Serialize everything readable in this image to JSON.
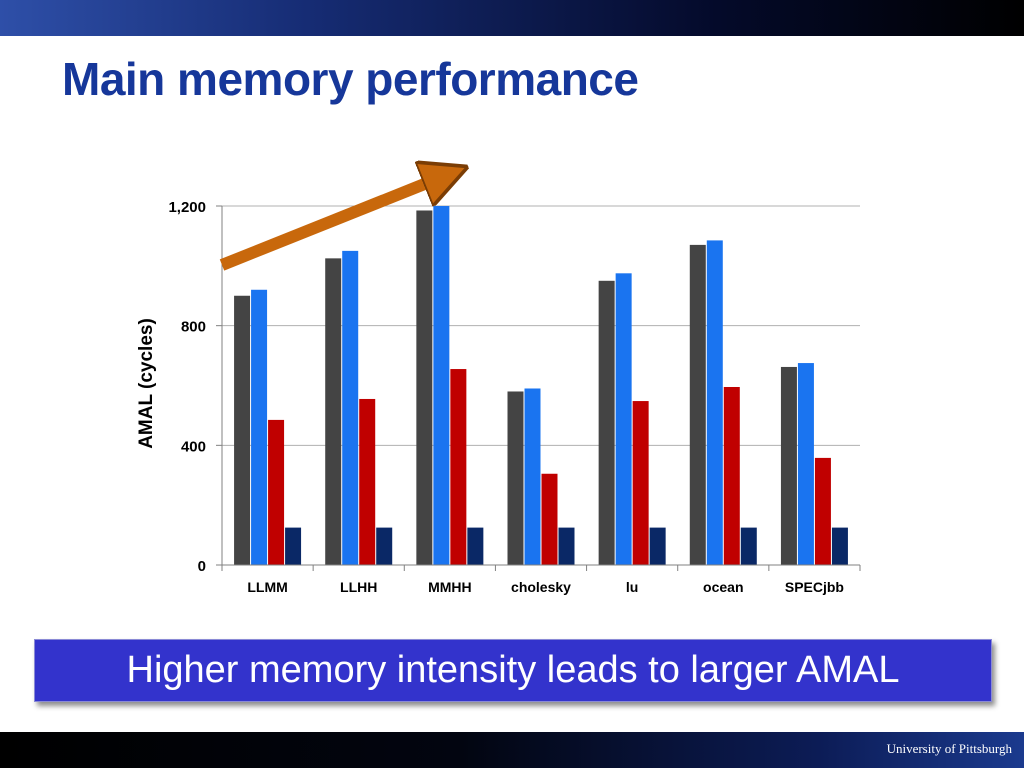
{
  "slide": {
    "title": "Main memory performance",
    "callout": "Higher memory intensity leads to larger AMAL",
    "footer": "University of Pittsburgh"
  },
  "colors": {
    "title": "#16379a",
    "callout_bg": "#3333cc",
    "arrow": "#c8680c",
    "series": [
      "#444444",
      "#1a74f0",
      "#c00000",
      "#0a2866"
    ]
  },
  "chart_data": {
    "type": "bar",
    "categories": [
      "LLMM",
      "LLHH",
      "MMHH",
      "cholesky",
      "lu",
      "ocean",
      "SPECjbb"
    ],
    "series": [
      {
        "values": [
          900,
          1025,
          1185,
          580,
          950,
          1070,
          662
        ]
      },
      {
        "values": [
          920,
          1050,
          1200,
          590,
          975,
          1085,
          675
        ]
      },
      {
        "values": [
          485,
          555,
          655,
          305,
          548,
          595,
          358
        ]
      },
      {
        "values": [
          125,
          125,
          125,
          125,
          125,
          125,
          125
        ]
      }
    ],
    "ylabel": "AMAL (cycles)",
    "ylim": [
      0,
      1200
    ],
    "yticks": [
      0,
      400,
      800,
      1200
    ],
    "ytick_labels": [
      "0",
      "400",
      "800",
      "1,200"
    ],
    "grid": true,
    "annotation": "upward-trend-arrow"
  }
}
